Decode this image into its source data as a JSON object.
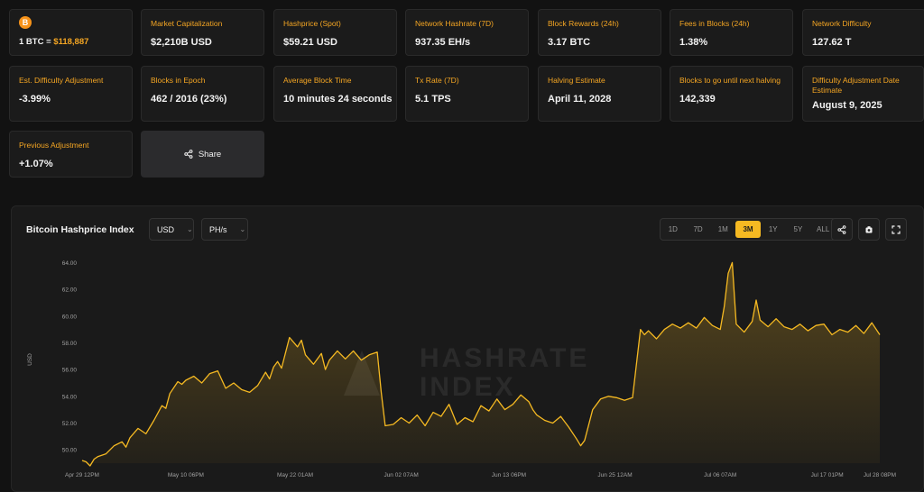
{
  "btc_card": {
    "logo": "B",
    "price_prefix": "1 BTC = ",
    "price_value": "$118,887"
  },
  "stats": [
    {
      "label": "Market Capitalization",
      "value": "$2,210B USD"
    },
    {
      "label": "Hashprice (Spot)",
      "value": "$59.21 USD"
    },
    {
      "label": "Network Hashrate (7D)",
      "value": "937.35 EH/s"
    },
    {
      "label": "Block Rewards (24h)",
      "value": "3.17 BTC"
    },
    {
      "label": "Fees in Blocks (24h)",
      "value": "1.38%"
    },
    {
      "label": "Network Difficulty",
      "value": "127.62 T"
    },
    {
      "label": "Est. Difficulty Adjustment",
      "value": "-3.99%"
    },
    {
      "label": "Blocks in Epoch",
      "value": "462 / 2016 (23%)"
    },
    {
      "label": "Average Block Time",
      "value": "10 minutes 24 seconds"
    },
    {
      "label": "Tx Rate (7D)",
      "value": "5.1 TPS"
    },
    {
      "label": "Halving Estimate",
      "value": "April 11, 2028"
    },
    {
      "label": "Blocks to go until next halving",
      "value": "142,339"
    },
    {
      "label": "Difficulty Adjustment Date Estimate",
      "value": "August 9, 2025"
    },
    {
      "label": "Previous Adjustment",
      "value": "+1.07%"
    }
  ],
  "share": {
    "label": "Share",
    "icon": "share-icon"
  },
  "chart_panel": {
    "title": "Bitcoin Hashprice Index",
    "currency_select": "USD",
    "unit_select": "PH/s",
    "ranges": [
      "1D",
      "7D",
      "1M",
      "3M",
      "1Y",
      "5Y",
      "ALL"
    ],
    "active_range": "3M",
    "icons": [
      "share-icon",
      "camera-icon",
      "fullscreen-icon"
    ],
    "watermark": "HASHRATE INDEX",
    "accent": "#f5b922"
  },
  "chart_data": {
    "type": "area",
    "ylabel": "USD",
    "ylim": [
      49,
      64.5
    ],
    "yticks": [
      "50.00",
      "52.00",
      "54.00",
      "56.00",
      "58.00",
      "60.00",
      "62.00",
      "64.00"
    ],
    "xticks": [
      {
        "label": "Apr 29 12PM",
        "at": 0
      },
      {
        "label": "May 10 06PM",
        "at": 0.13
      },
      {
        "label": "May 22 01AM",
        "at": 0.267
      },
      {
        "label": "Jun 02 07AM",
        "at": 0.4
      },
      {
        "label": "Jun 13 06PM",
        "at": 0.535
      },
      {
        "label": "Jun 25 12AM",
        "at": 0.668
      },
      {
        "label": "Jul 06 07AM",
        "at": 0.8
      },
      {
        "label": "Jul 17 01PM",
        "at": 0.934
      },
      {
        "label": "Jul 28 08PM",
        "at": 1.0
      }
    ],
    "series": [
      {
        "x": [
          0,
          0.005,
          0.01,
          0.015,
          0.02,
          0.03,
          0.04,
          0.05,
          0.055,
          0.06,
          0.07,
          0.08,
          0.09,
          0.1,
          0.105,
          0.11,
          0.12,
          0.125,
          0.13,
          0.14,
          0.15,
          0.16,
          0.17,
          0.18,
          0.19,
          0.2,
          0.21,
          0.22,
          0.23,
          0.235,
          0.24,
          0.245,
          0.25,
          0.26,
          0.27,
          0.275,
          0.28,
          0.29,
          0.3,
          0.305,
          0.31,
          0.32,
          0.33,
          0.34,
          0.35,
          0.36,
          0.37,
          0.375,
          0.38,
          0.39,
          0.4,
          0.41,
          0.42,
          0.43,
          0.44,
          0.45,
          0.46,
          0.47,
          0.48,
          0.49,
          0.5,
          0.51,
          0.52,
          0.53,
          0.54,
          0.55,
          0.56,
          0.565,
          0.57,
          0.58,
          0.59,
          0.6,
          0.61,
          0.62,
          0.625,
          0.63,
          0.64,
          0.645,
          0.65,
          0.66,
          0.67,
          0.68,
          0.69,
          0.7,
          0.705,
          0.71,
          0.72,
          0.73,
          0.74,
          0.75,
          0.76,
          0.77,
          0.78,
          0.79,
          0.8,
          0.805,
          0.81,
          0.815,
          0.82,
          0.83,
          0.84,
          0.845,
          0.85,
          0.86,
          0.87,
          0.875,
          0.88,
          0.89,
          0.9,
          0.91,
          0.92,
          0.93,
          0.94,
          0.95,
          0.96,
          0.97,
          0.98,
          0.99,
          1.0
        ],
        "y": [
          49.2,
          49.1,
          48.8,
          49.3,
          49.5,
          49.7,
          50.3,
          50.6,
          50.2,
          50.9,
          51.6,
          51.2,
          52.2,
          53.3,
          53.1,
          54.2,
          55.1,
          54.9,
          55.2,
          55.5,
          55.0,
          55.7,
          55.9,
          54.6,
          55.0,
          54.5,
          54.3,
          54.8,
          55.8,
          55.3,
          56.2,
          56.6,
          56.1,
          58.4,
          57.7,
          58.2,
          57.1,
          56.4,
          57.2,
          56.0,
          56.7,
          57.4,
          56.8,
          57.4,
          56.7,
          57.1,
          57.3,
          54.3,
          51.8,
          51.9,
          52.4,
          52.0,
          52.6,
          51.8,
          52.8,
          52.5,
          53.4,
          51.9,
          52.4,
          52.1,
          53.3,
          52.9,
          53.8,
          53.0,
          53.4,
          54.1,
          53.6,
          53.0,
          52.6,
          52.2,
          52.0,
          52.5,
          51.7,
          50.8,
          50.3,
          50.7,
          53.0,
          53.4,
          53.8,
          54.0,
          53.9,
          53.7,
          53.9,
          59.0,
          58.6,
          58.9,
          58.3,
          59.0,
          59.4,
          59.1,
          59.5,
          59.1,
          59.9,
          59.3,
          59.0,
          60.7,
          63.2,
          64.0,
          59.4,
          58.8,
          59.6,
          61.2,
          59.7,
          59.2,
          59.8,
          59.5,
          59.2,
          59.0,
          59.4,
          58.9,
          59.3,
          59.4,
          58.6,
          59.0,
          58.8,
          59.3,
          58.7,
          59.5,
          58.6
        ]
      }
    ]
  }
}
